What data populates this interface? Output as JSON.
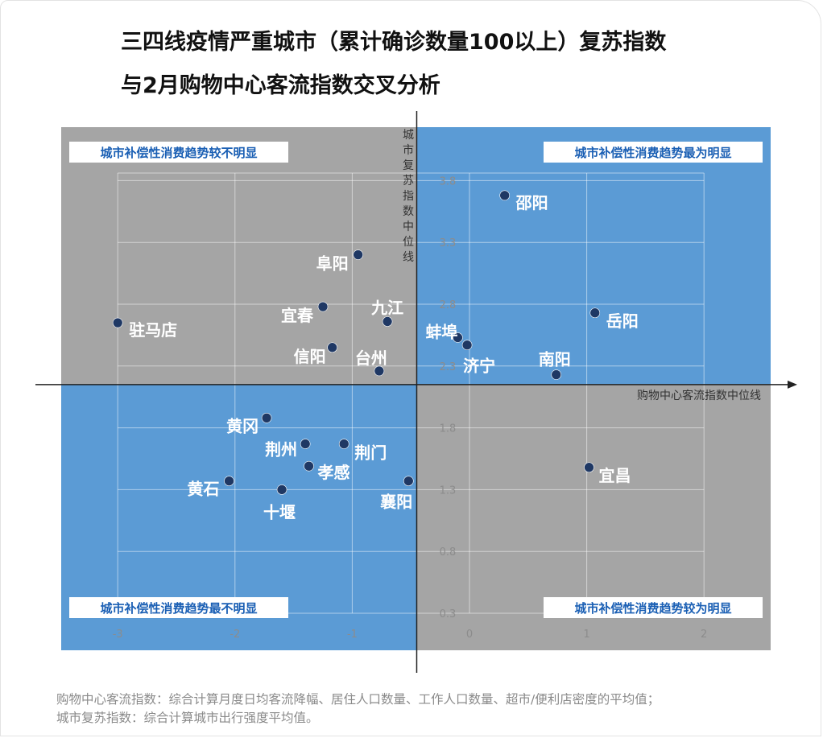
{
  "title": {
    "line1": "三四线疫情严重城市（累计确诊数量100以上）复苏指数",
    "line2": "与2月购物中心客流指数交叉分析"
  },
  "footer": {
    "line1": "购物中心客流指数：综合计算月度日均客流降幅、居住人口数量、工作人口数量、超市/便利店密度的平均值；",
    "line2": "城市复苏指数：综合计算城市出行强度平均值。"
  },
  "colors": {
    "blue_quadrant": "#5b9bd5",
    "gray_quadrant": "#a5a5a5",
    "point": "#1f3864",
    "grid": "rgba(255,255,255,0.5)"
  },
  "chart_data": {
    "type": "scatter",
    "xlabel": "购物中心客流指数中位线",
    "ylabel": "城市复苏指数中位线",
    "xlim": [
      -3.5,
      2.55
    ],
    "ylim": [
      0.0,
      4.25
    ],
    "x_ticks": [
      -3,
      -2,
      -1,
      0,
      1,
      2
    ],
    "y_ticks": [
      0.3,
      0.8,
      1.3,
      1.8,
      2.3,
      2.8,
      3.3,
      3.8
    ],
    "median_lines": {
      "x": -0.45,
      "y": 2.15
    },
    "quadrant_labels": {
      "top_left": "城市补偿性消费趋势较不明显",
      "top_right": "城市补偿性消费趋势最为明显",
      "bottom_left": "城市补偿性消费趋势最不明显",
      "bottom_right": "城市补偿性消费趋势较为明显"
    },
    "points": [
      {
        "name": "邵阳",
        "x": 0.3,
        "y": 3.68
      },
      {
        "name": "阜阳",
        "x": -0.95,
        "y": 3.2
      },
      {
        "name": "九江",
        "x": -0.7,
        "y": 2.66
      },
      {
        "name": "宜春",
        "x": -1.25,
        "y": 2.78
      },
      {
        "name": "驻马店",
        "x": -3.0,
        "y": 2.65
      },
      {
        "name": "信阳",
        "x": -1.17,
        "y": 2.45
      },
      {
        "name": "台州",
        "x": -0.77,
        "y": 2.26
      },
      {
        "name": "蚌埠",
        "x": -0.1,
        "y": 2.53
      },
      {
        "name": "济宁",
        "x": -0.02,
        "y": 2.47
      },
      {
        "name": "岳阳",
        "x": 1.07,
        "y": 2.73
      },
      {
        "name": "南阳",
        "x": 0.74,
        "y": 2.23
      },
      {
        "name": "黄冈",
        "x": -1.73,
        "y": 1.88
      },
      {
        "name": "荆州",
        "x": -1.4,
        "y": 1.67
      },
      {
        "name": "荆门",
        "x": -1.07,
        "y": 1.67
      },
      {
        "name": "孝感",
        "x": -1.37,
        "y": 1.49
      },
      {
        "name": "黄石",
        "x": -2.05,
        "y": 1.37
      },
      {
        "name": "十堰",
        "x": -1.6,
        "y": 1.3
      },
      {
        "name": "襄阳",
        "x": -0.52,
        "y": 1.37
      },
      {
        "name": "宜昌",
        "x": 1.02,
        "y": 1.48
      }
    ]
  }
}
